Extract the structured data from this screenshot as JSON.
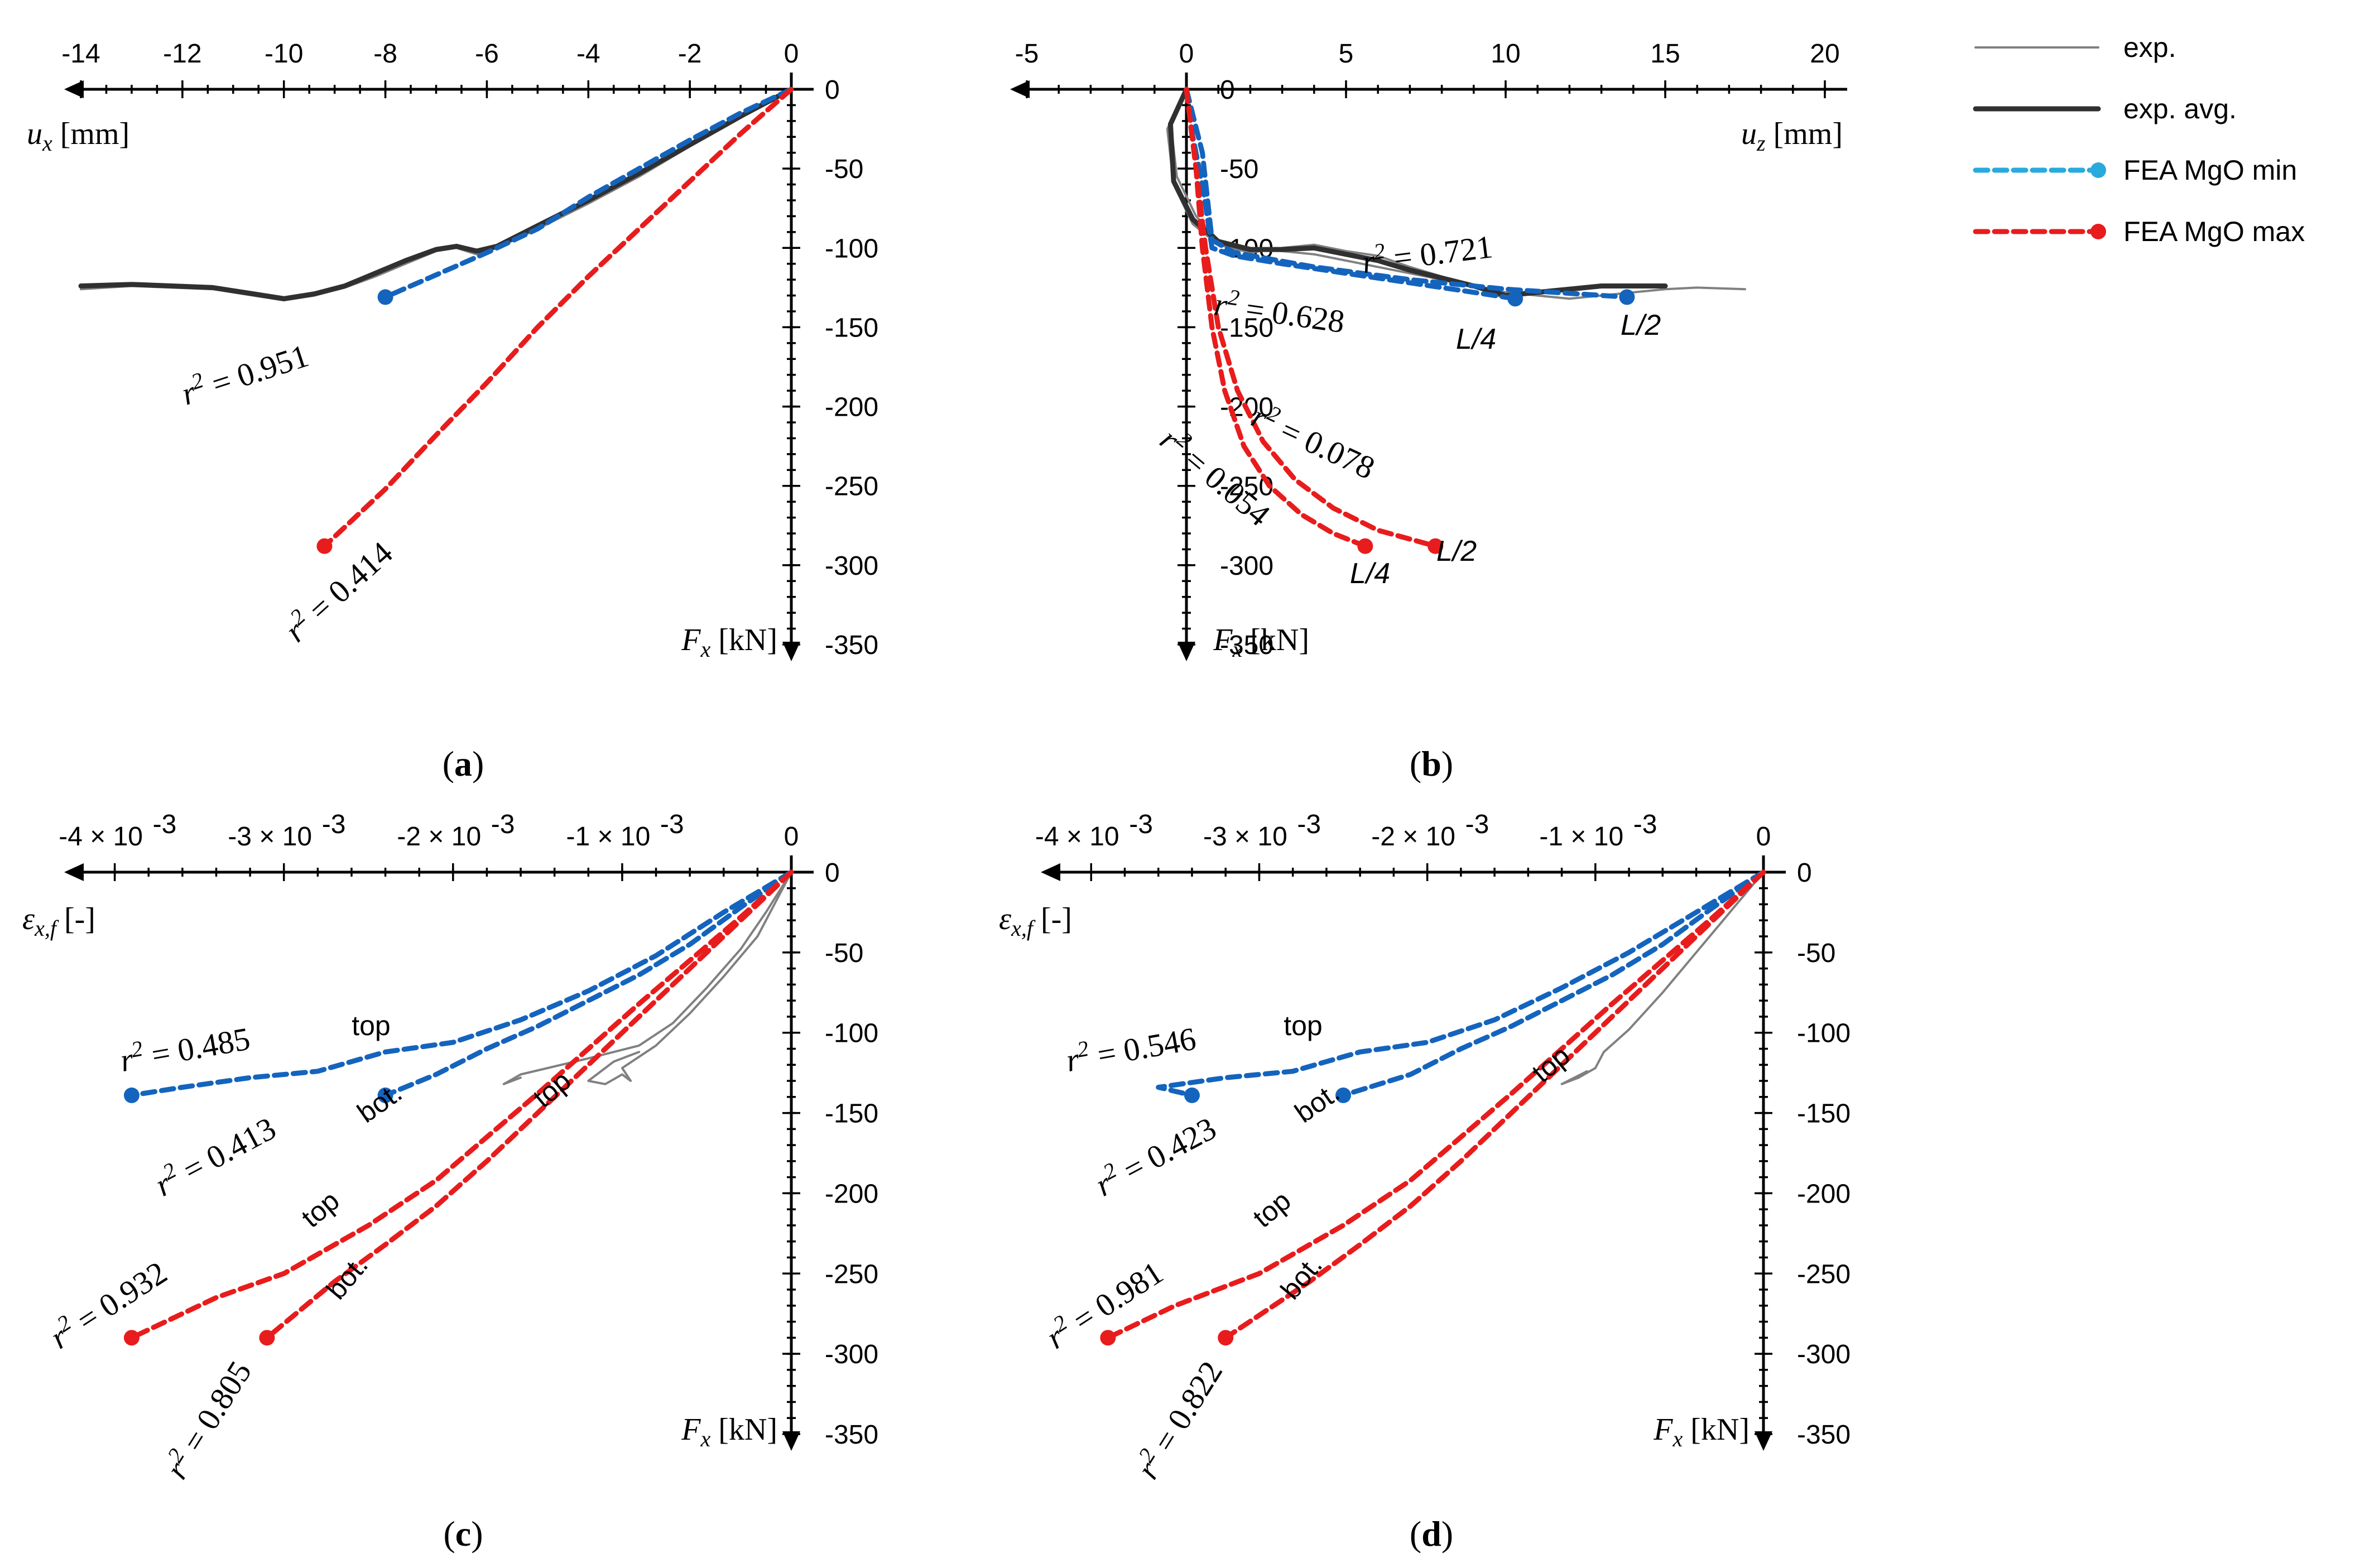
{
  "colors": {
    "exp": "#808080",
    "exp_avg": "#303030",
    "fea_min": "#1464be",
    "fea_min_legend": "#28aadc",
    "fea_max": "#e81c1c"
  },
  "legend": [
    {
      "label": "exp.",
      "style": "exp"
    },
    {
      "label": "exp. avg.",
      "style": "exp_avg"
    },
    {
      "label": "FEA MgO min",
      "style": "fea_min"
    },
    {
      "label": "FEA MgO max",
      "style": "fea_max"
    }
  ],
  "chart_data": [
    {
      "id": "a",
      "type": "line",
      "caption": "(a)",
      "xlabel": "u_x [mm]",
      "ylabel": "F_x [kN]",
      "xlim": [
        -14,
        0
      ],
      "ylim": [
        0,
        -350
      ],
      "xticks": [
        "-14",
        "-12",
        "-10",
        "-8",
        "-6",
        "-4",
        "-2",
        "0"
      ],
      "yticks": [
        "0",
        "-50",
        "-100",
        "-150",
        "-200",
        "-250",
        "-300",
        "-350"
      ],
      "series": [
        {
          "style": "exp",
          "x": [
            0,
            -1,
            -2,
            -3,
            -4,
            -5,
            -5.8,
            -6.2,
            -6.6,
            -7,
            -7.6,
            -8.2,
            -8.8,
            -9.4,
            -10,
            -10.6,
            -11.4,
            -12.2,
            -13,
            -14
          ],
          "y": [
            0,
            -18,
            -36,
            -55,
            -72,
            -88,
            -100,
            -104,
            -100,
            -102,
            -110,
            -118,
            -125,
            -130,
            -133,
            -130,
            -126,
            -125,
            -124,
            -126
          ]
        },
        {
          "style": "exp_avg",
          "x": [
            0,
            -1,
            -2,
            -3,
            -4,
            -5,
            -5.8,
            -6.2,
            -6.6,
            -7,
            -7.6,
            -8.2,
            -8.8,
            -9.4,
            -10,
            -10.6,
            -11.4,
            -12.2,
            -13,
            -14
          ],
          "y": [
            0,
            -17,
            -35,
            -53,
            -70,
            -86,
            -99,
            -102,
            -99,
            -101,
            -108,
            -116,
            -124,
            -129,
            -132,
            -129,
            -125,
            -124,
            -123,
            -124
          ]
        },
        {
          "style": "fea_min",
          "x": [
            0,
            -1,
            -2,
            -3,
            -4,
            -5,
            -6,
            -7,
            -8
          ],
          "y": [
            0,
            -15,
            -32,
            -50,
            -68,
            -88,
            -103,
            -117,
            -131
          ]
        },
        {
          "style": "fea_max",
          "x": [
            0,
            -1,
            -2,
            -3,
            -4,
            -5,
            -6,
            -7,
            -8,
            -9.2
          ],
          "y": [
            0,
            -28,
            -58,
            -88,
            -118,
            -150,
            -185,
            -218,
            -252,
            -288
          ]
        }
      ],
      "annotations": [
        {
          "r2": "0.951",
          "style": "fea_min"
        },
        {
          "r2": "0.414",
          "style": "fea_max"
        }
      ]
    },
    {
      "id": "b",
      "type": "line",
      "caption": "(b)",
      "xlabel": "u_z [mm]",
      "ylabel": "F_x [kN]",
      "xlim": [
        -5,
        20
      ],
      "ylim": [
        0,
        -350
      ],
      "xticks": [
        "-5",
        "0",
        "5",
        "10",
        "15",
        "20"
      ],
      "yticks": [
        "0",
        "-50",
        "-100",
        "-150",
        "-200",
        "-250",
        "-300",
        "-350"
      ],
      "series": [
        {
          "style": "exp",
          "x": [
            0,
            -0.5,
            -0.3,
            0.3,
            1,
            2,
            3,
            4,
            5,
            6,
            7,
            8,
            9,
            10,
            11,
            12,
            13,
            14,
            15,
            16,
            17.5
          ],
          "y": [
            0,
            -20,
            -55,
            -80,
            -95,
            -100,
            -102,
            -104,
            -108,
            -112,
            -116,
            -120,
            -124,
            -128,
            -130,
            -132,
            -130,
            -128,
            -126,
            -125,
            -126
          ]
        },
        {
          "style": "exp",
          "x": [
            0,
            -0.6,
            -0.4,
            0.2,
            1,
            2,
            3,
            4,
            5,
            6,
            7,
            8,
            9,
            10
          ],
          "y": [
            0,
            -25,
            -60,
            -85,
            -98,
            -103,
            -100,
            -98,
            -102,
            -105,
            -112,
            -118,
            -124,
            -132
          ]
        },
        {
          "style": "exp_avg",
          "x": [
            0,
            -0.5,
            -0.4,
            0.2,
            1,
            2,
            3,
            4,
            5,
            6,
            7,
            8,
            9,
            10,
            11,
            12,
            13,
            14,
            15
          ],
          "y": [
            0,
            -22,
            -58,
            -82,
            -96,
            -101,
            -101,
            -100,
            -104,
            -108,
            -114,
            -119,
            -124,
            -130,
            -128,
            -126,
            -124,
            -124,
            -124
          ]
        },
        {
          "style": "fea_min",
          "label": "L/4",
          "x": [
            0,
            0.2,
            0.5,
            0.8,
            1.5,
            3,
            5,
            7,
            9,
            10.3
          ],
          "y": [
            0,
            -30,
            -60,
            -100,
            -105,
            -110,
            -116,
            -122,
            -128,
            -132
          ]
        },
        {
          "style": "fea_min",
          "label": "L/2",
          "x": [
            0,
            0.5,
            0.8,
            1.5,
            4,
            7,
            10,
            13.8
          ],
          "y": [
            0,
            -40,
            -95,
            -103,
            -112,
            -120,
            -126,
            -131
          ]
        },
        {
          "style": "fea_max",
          "label": "L/4",
          "x": [
            0,
            0.3,
            0.5,
            0.8,
            1.2,
            1.8,
            2.6,
            3.6,
            4.6,
            5.6
          ],
          "y": [
            0,
            -50,
            -100,
            -150,
            -190,
            -225,
            -250,
            -268,
            -280,
            -288
          ]
        },
        {
          "style": "fea_max",
          "label": "L/2",
          "x": [
            0,
            0.3,
            0.6,
            1,
            1.6,
            2.4,
            3.4,
            4.6,
            6,
            7.8
          ],
          "y": [
            0,
            -50,
            -100,
            -150,
            -190,
            -222,
            -246,
            -264,
            -278,
            -288
          ]
        }
      ],
      "annotations": [
        {
          "r2": "0.721",
          "style": "exp"
        },
        {
          "r2": "0.628",
          "style": "fea_min"
        },
        {
          "r2": "0.078",
          "style": "fea_max"
        },
        {
          "r2": "0.054",
          "style": "fea_max"
        }
      ],
      "point_labels": [
        "L/4",
        "L/2",
        "L/4",
        "L/2"
      ]
    },
    {
      "id": "c",
      "type": "line",
      "caption": "(c)",
      "xlabel": "ε_x,f [-]",
      "ylabel": "F_x [kN]",
      "xlim": [
        -0.0042,
        0
      ],
      "ylim": [
        0,
        -350
      ],
      "xticks": [
        "-4 × 10",
        "-3 × 10",
        "-2 × 10",
        "-1 × 10",
        "0"
      ],
      "xtick_exp": "-3",
      "yticks": [
        "0",
        "-50",
        "-100",
        "-150",
        "-200",
        "-250",
        "-300",
        "-350"
      ],
      "series": [
        {
          "style": "exp",
          "x": [
            0,
            -0.0001,
            -0.0002,
            -0.0004,
            -0.0006,
            -0.0008,
            -0.001,
            -0.00095,
            -0.001,
            -0.0011,
            -0.0012,
            -0.00105,
            -0.0009
          ],
          "y": [
            0,
            -20,
            -40,
            -65,
            -88,
            -108,
            -122,
            -130,
            -126,
            -132,
            -130,
            -118,
            -112
          ]
        },
        {
          "style": "exp",
          "x": [
            0,
            -0.00015,
            -0.0003,
            -0.0005,
            -0.0007,
            -0.0009,
            -0.0012,
            -0.0016,
            -0.0017,
            -0.0016
          ],
          "y": [
            0,
            -25,
            -48,
            -72,
            -94,
            -108,
            -116,
            -126,
            -132,
            -128
          ]
        },
        {
          "style": "fea_min",
          "label": "top",
          "x": [
            0,
            -0.0004,
            -0.0008,
            -0.0012,
            -0.0016,
            -0.002,
            -0.0024,
            -0.0028,
            -0.0032,
            -0.0036,
            -0.0039
          ],
          "y": [
            0,
            -25,
            -52,
            -74,
            -92,
            -106,
            -112,
            -124,
            -128,
            -134,
            -139
          ]
        },
        {
          "style": "fea_min",
          "label": "bot.",
          "x": [
            0,
            -0.0003,
            -0.0006,
            -0.0009,
            -0.0012,
            -0.0015,
            -0.0018,
            -0.0021,
            -0.0024
          ],
          "y": [
            0,
            -22,
            -45,
            -64,
            -80,
            -96,
            -110,
            -126,
            -139
          ]
        },
        {
          "style": "fea_max",
          "label": "top",
          "x": [
            0,
            -0.0003,
            -0.0006,
            -0.0009,
            -0.0012,
            -0.0015,
            -0.0018,
            -0.0021,
            -0.0025,
            -0.003,
            -0.0034,
            -0.0039
          ],
          "y": [
            0,
            -28,
            -55,
            -82,
            -110,
            -138,
            -165,
            -192,
            -220,
            -250,
            -265,
            -290
          ]
        },
        {
          "style": "fea_max",
          "label": "bot.",
          "x": [
            0,
            -0.0003,
            -0.0006,
            -0.0009,
            -0.0012,
            -0.0015,
            -0.0018,
            -0.0021,
            -0.0024,
            -0.0027,
            -0.0031
          ],
          "y": [
            0,
            -30,
            -60,
            -90,
            -120,
            -150,
            -180,
            -208,
            -232,
            -255,
            -290
          ]
        }
      ],
      "annotations": [
        {
          "r2": "0.485",
          "style": "fea_min"
        },
        {
          "r2": "0.413",
          "style": "fea_min"
        },
        {
          "r2": "0.932",
          "style": "fea_max"
        },
        {
          "r2": "0.805",
          "style": "fea_max"
        }
      ],
      "point_labels": [
        "top",
        "bot.",
        "top",
        "top",
        "bot."
      ]
    },
    {
      "id": "d",
      "type": "line",
      "caption": "(d)",
      "xlabel": "ε_x,f [-]",
      "ylabel": "F_x [kN]",
      "xlim": [
        -0.0042,
        0
      ],
      "ylim": [
        0,
        -350
      ],
      "xticks": [
        "-4 × 10",
        "-3 × 10",
        "-2 × 10",
        "-1 × 10",
        "0"
      ],
      "xtick_exp": "-3",
      "yticks": [
        "0",
        "-50",
        "-100",
        "-150",
        "-200",
        "-250",
        "-300",
        "-350"
      ],
      "series": [
        {
          "style": "exp",
          "x": [
            0,
            -0.0002,
            -0.0004,
            -0.0006,
            -0.0008,
            -0.00095,
            -0.001,
            -0.0011,
            -0.0012,
            -0.00105
          ],
          "y": [
            0,
            -25,
            -50,
            -75,
            -98,
            -112,
            -122,
            -128,
            -132,
            -124
          ]
        },
        {
          "style": "fea_min",
          "label": "top",
          "x": [
            0,
            -0.0004,
            -0.0008,
            -0.0012,
            -0.0016,
            -0.002,
            -0.0024,
            -0.0028,
            -0.0032,
            -0.0036,
            -0.0034
          ],
          "y": [
            0,
            -25,
            -50,
            -72,
            -92,
            -106,
            -112,
            -124,
            -128,
            -134,
            -139
          ]
        },
        {
          "style": "fea_min",
          "label": "bot.",
          "x": [
            0,
            -0.0003,
            -0.0006,
            -0.0009,
            -0.0012,
            -0.0015,
            -0.0018,
            -0.0021,
            -0.0025
          ],
          "y": [
            0,
            -22,
            -45,
            -64,
            -80,
            -96,
            -110,
            -126,
            -139
          ]
        },
        {
          "style": "fea_max",
          "label": "top",
          "x": [
            0,
            -0.0003,
            -0.0006,
            -0.0009,
            -0.0012,
            -0.0015,
            -0.0018,
            -0.0021,
            -0.0025,
            -0.003,
            -0.0035,
            -0.0039
          ],
          "y": [
            0,
            -28,
            -55,
            -82,
            -110,
            -138,
            -165,
            -192,
            -220,
            -250,
            -270,
            -290
          ]
        },
        {
          "style": "fea_max",
          "label": "bot.",
          "x": [
            0,
            -0.0003,
            -0.0006,
            -0.0009,
            -0.0012,
            -0.0015,
            -0.0018,
            -0.0021,
            -0.0024,
            -0.0027,
            -0.0032
          ],
          "y": [
            0,
            -30,
            -60,
            -90,
            -120,
            -150,
            -180,
            -208,
            -232,
            -255,
            -290
          ]
        }
      ],
      "annotations": [
        {
          "r2": "0.546",
          "style": "fea_min"
        },
        {
          "r2": "0.423",
          "style": "fea_min"
        },
        {
          "r2": "0.981",
          "style": "fea_max"
        },
        {
          "r2": "0.822",
          "style": "fea_max"
        }
      ],
      "point_labels": [
        "top",
        "bot.",
        "top",
        "top",
        "bot."
      ]
    }
  ]
}
